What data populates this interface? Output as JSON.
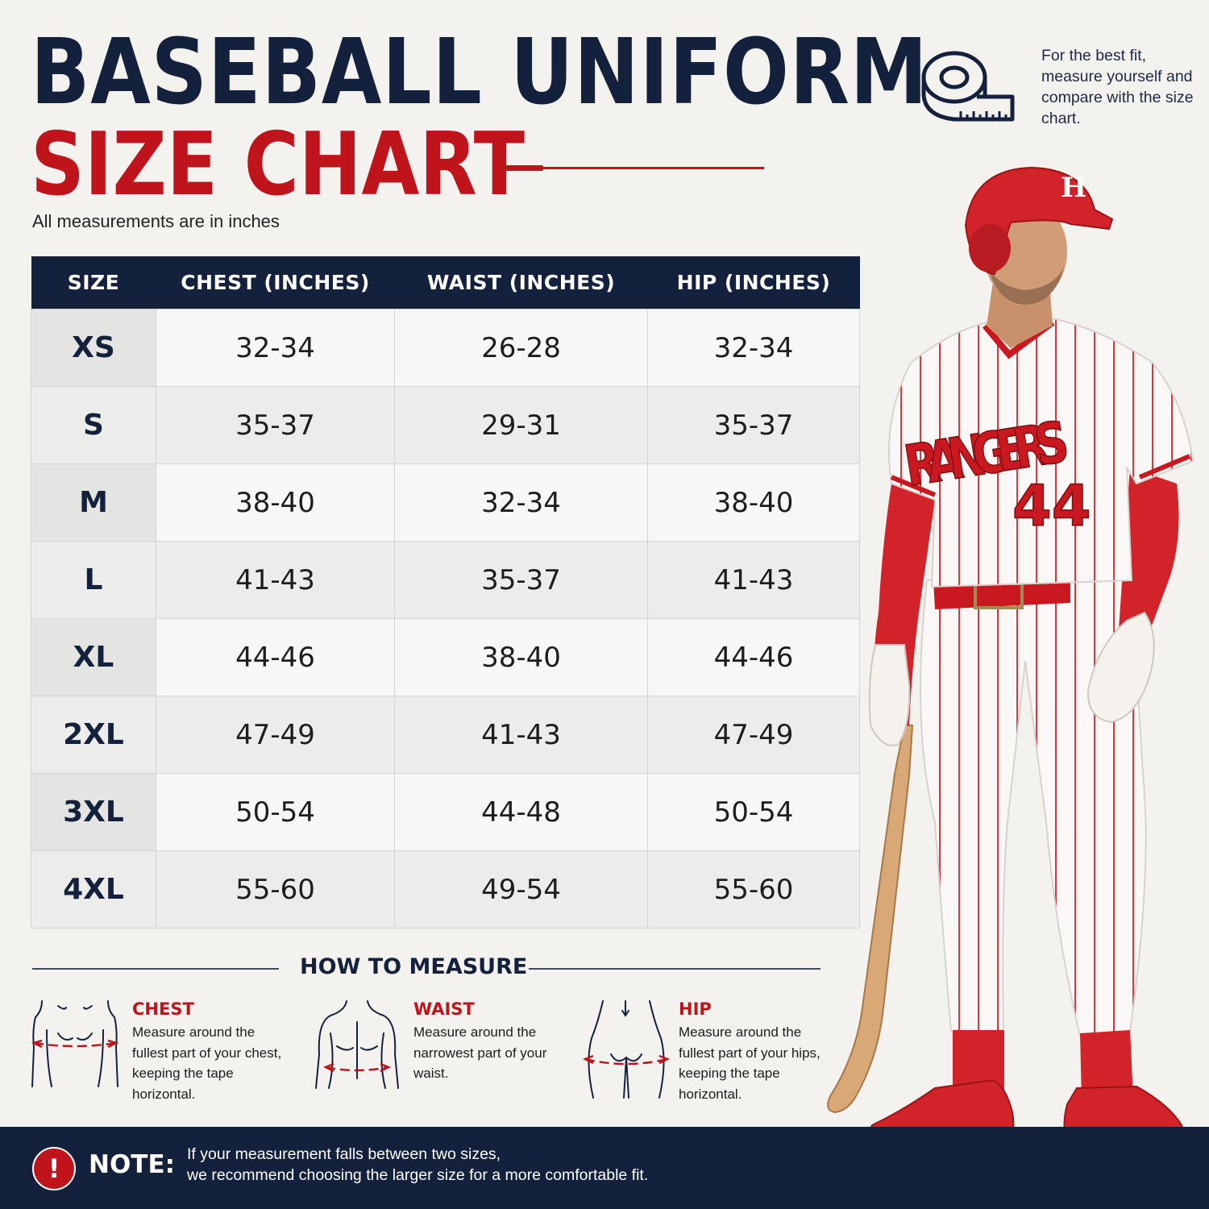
{
  "header": {
    "title_line1": "BASEBALL UNIFORM",
    "title_line2": "SIZE CHART",
    "subtitle": "All measurements are in inches",
    "tip": "For the best fit, measure yourself and compare with the size chart.",
    "tip_icon": "measuring-tape-icon"
  },
  "table": {
    "headers": [
      "SIZE",
      "CHEST (INCHES)",
      "WAIST (INCHES)",
      "HIP (INCHES)"
    ],
    "rows": [
      {
        "size": "XS",
        "chest": "32-34",
        "waist": "26-28",
        "hip": "32-34"
      },
      {
        "size": "S",
        "chest": "35-37",
        "waist": "29-31",
        "hip": "35-37"
      },
      {
        "size": "M",
        "chest": "38-40",
        "waist": "32-34",
        "hip": "38-40"
      },
      {
        "size": "L",
        "chest": "41-43",
        "waist": "35-37",
        "hip": "41-43"
      },
      {
        "size": "XL",
        "chest": "44-46",
        "waist": "38-40",
        "hip": "44-46"
      },
      {
        "size": "2XL",
        "chest": "47-49",
        "waist": "41-43",
        "hip": "47-49"
      },
      {
        "size": "3XL",
        "chest": "50-54",
        "waist": "44-48",
        "hip": "50-54"
      },
      {
        "size": "4XL",
        "chest": "55-60",
        "waist": "49-54",
        "hip": "55-60"
      }
    ]
  },
  "how_to_measure": {
    "title": "HOW TO MEASURE",
    "items": [
      {
        "label": "CHEST",
        "text": "Measure around the fullest part of your chest, keeping the tape horizontal."
      },
      {
        "label": "WAIST",
        "text": "Measure around the narrowest part of your waist."
      },
      {
        "label": "HIP",
        "text": "Measure around the fullest part of your hips, keeping the tape horizontal."
      }
    ]
  },
  "player": {
    "jersey_text": "RANGERS",
    "jersey_number": "44",
    "helmet_letter": "H"
  },
  "note": {
    "icon": "!",
    "label": "NOTE:",
    "text_line1": "If your measurement falls between two sizes,",
    "text_line2": "we recommend choosing the larger size for a more comfortable fit."
  },
  "colors": {
    "navy": "#14213d",
    "red": "#c0141c",
    "background": "#f4f2ee"
  }
}
